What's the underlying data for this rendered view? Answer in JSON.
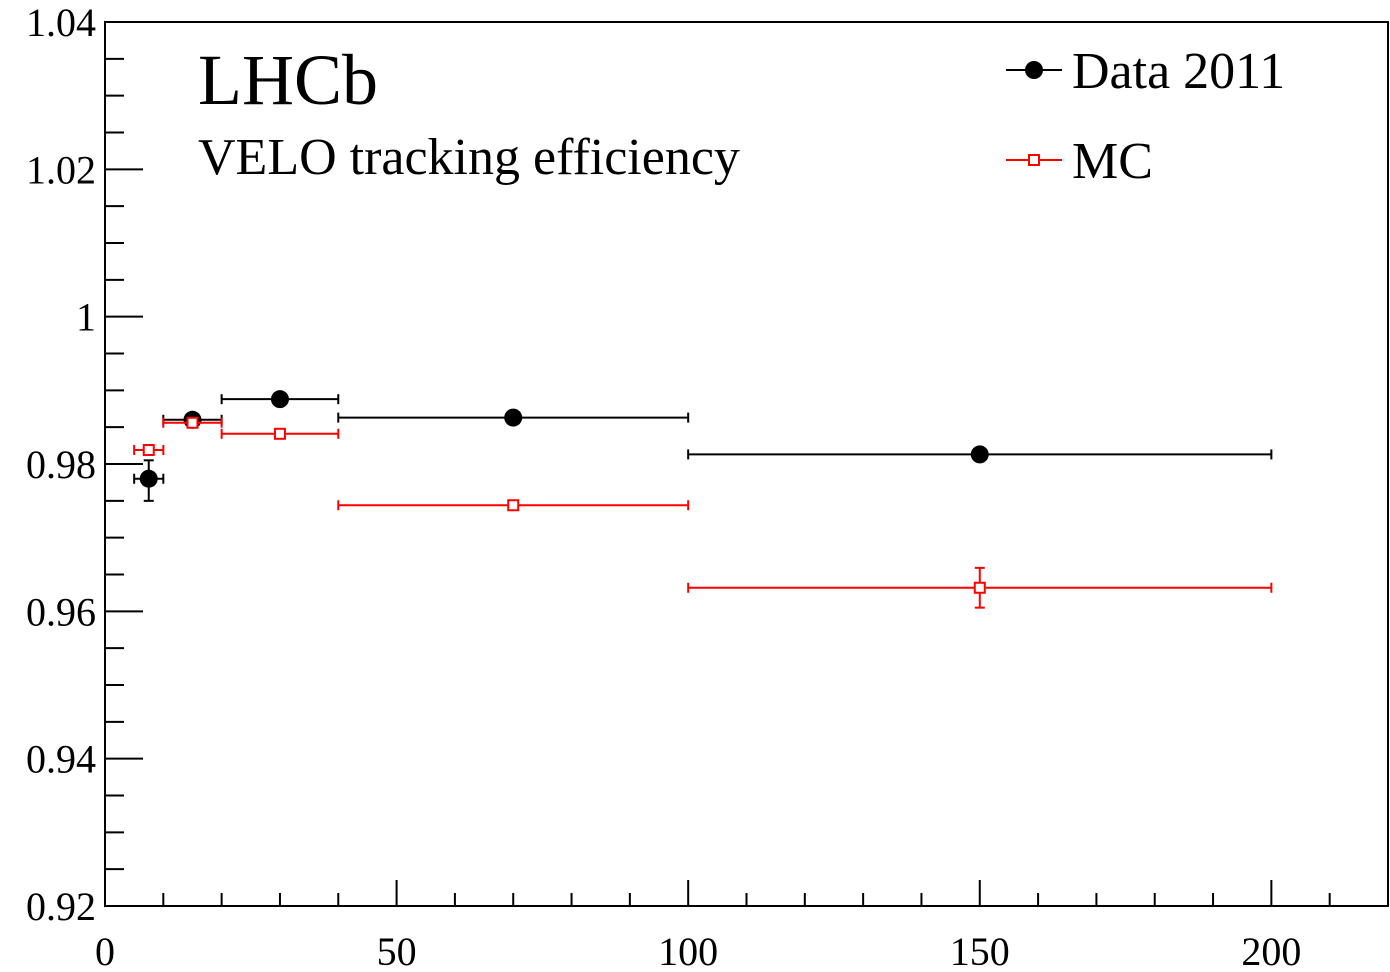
{
  "chart_data": {
    "type": "scatter",
    "title": "LHCb",
    "subtitle": "VELO tracking efficiency",
    "xlabel": "",
    "ylabel": "",
    "xlim": [
      0,
      220
    ],
    "ylim": [
      0.92,
      1.04
    ],
    "x_ticks": [
      0,
      50,
      100,
      150,
      200
    ],
    "x_tick_labels": [
      "0",
      "50",
      "100",
      "150",
      "200"
    ],
    "y_ticks": [
      0.92,
      0.94,
      0.96,
      0.98,
      1.0,
      1.02,
      1.04
    ],
    "y_tick_labels": [
      "0.92",
      "0.94",
      "0.96",
      "0.98",
      "1",
      "1.02",
      "1.04"
    ],
    "grid": false,
    "legend_position": "top-right",
    "series": [
      {
        "name": "Data 2011",
        "color": "#000000",
        "marker": "filled-circle",
        "points": [
          {
            "x": 7.5,
            "xlo": 5,
            "xhi": 10,
            "y": 0.978,
            "ylo": 0.975,
            "yhi": 0.9805
          },
          {
            "x": 15,
            "xlo": 10,
            "xhi": 20,
            "y": 0.986,
            "ylo": 0.9857,
            "yhi": 0.9863
          },
          {
            "x": 30,
            "xlo": 20,
            "xhi": 40,
            "y": 0.9888,
            "ylo": 0.9886,
            "yhi": 0.989
          },
          {
            "x": 70,
            "xlo": 40,
            "xhi": 100,
            "y": 0.9863,
            "ylo": 0.9861,
            "yhi": 0.9866
          },
          {
            "x": 150,
            "xlo": 100,
            "xhi": 200,
            "y": 0.9813,
            "ylo": 0.9808,
            "yhi": 0.9819
          }
        ]
      },
      {
        "name": "MC",
        "color": "#ff0000",
        "marker": "open-square",
        "points": [
          {
            "x": 7.5,
            "xlo": 5,
            "xhi": 10,
            "y": 0.9819,
            "ylo": 0.9817,
            "yhi": 0.9821
          },
          {
            "x": 15,
            "xlo": 10,
            "xhi": 20,
            "y": 0.9856,
            "ylo": 0.9855,
            "yhi": 0.9857
          },
          {
            "x": 30,
            "xlo": 20,
            "xhi": 40,
            "y": 0.9841,
            "ylo": 0.984,
            "yhi": 0.9842
          },
          {
            "x": 70,
            "xlo": 40,
            "xhi": 100,
            "y": 0.9744,
            "ylo": 0.9742,
            "yhi": 0.9746
          },
          {
            "x": 150,
            "xlo": 100,
            "xhi": 200,
            "y": 0.9632,
            "ylo": 0.9605,
            "yhi": 0.9659
          }
        ]
      }
    ]
  }
}
